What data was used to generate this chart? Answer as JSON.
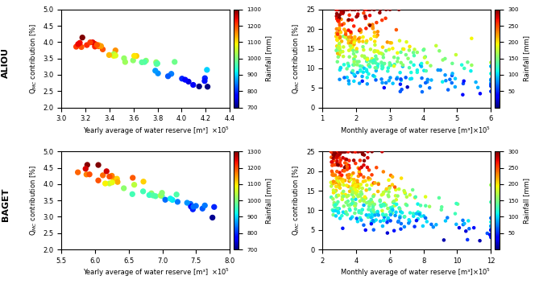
{
  "aliou_annual": {
    "x_range": [
      300000.0,
      440000.0
    ],
    "y_range": [
      2.0,
      5.0
    ],
    "xlabel": "Yearly average of water reserve [m³]",
    "ylabel": "Q$_{MC}$ contribution [%]",
    "cbar_label": "Rainfall [mm]",
    "cbar_range": [
      700,
      1300
    ],
    "cbar_ticks": [
      700,
      800,
      900,
      1000,
      1100,
      1200,
      1300
    ],
    "title": "ALIOU"
  },
  "aliou_monthly": {
    "x_range": [
      100000.0,
      600000.0
    ],
    "y_range": [
      0,
      25
    ],
    "xlabel": "Monthly average of water reserve [m³]",
    "ylabel": "Q$_{MC}$ contribution [%]",
    "cbar_label": "Rainfall [mm]",
    "cbar_range": [
      0,
      300
    ],
    "cbar_ticks": [
      50,
      100,
      150,
      200,
      250,
      300
    ]
  },
  "baget_annual": {
    "x_range": [
      550000.0,
      800000.0
    ],
    "y_range": [
      2.0,
      5.0
    ],
    "xlabel": "Yearly average of water reserve [m³]",
    "ylabel": "Q$_{MC}$ contribution [%]",
    "cbar_label": "Rainfall [mm]",
    "cbar_range": [
      700,
      1300
    ],
    "cbar_ticks": [
      700,
      800,
      900,
      1000,
      1100,
      1200,
      1300
    ],
    "title": "BAGET"
  },
  "baget_monthly": {
    "x_range": [
      200000.0,
      1200000.0
    ],
    "y_range": [
      0,
      25
    ],
    "xlabel": "Monthly average of water reserve [m³]",
    "ylabel": "Q$_{MC}$ contribution [%]",
    "cbar_label": "Rainfall [mm]",
    "cbar_range": [
      0,
      300
    ],
    "cbar_ticks": [
      50,
      100,
      150,
      200,
      250,
      300
    ]
  },
  "background_color": "#ffffff"
}
